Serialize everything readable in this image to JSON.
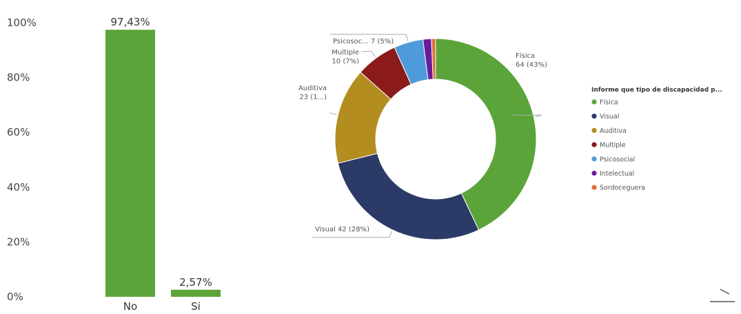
{
  "chart_data": [
    {
      "type": "bar",
      "categories": [
        "No",
        "Si"
      ],
      "values": [
        97.43,
        2.57
      ],
      "data_labels": [
        "97,43%",
        "2,57%"
      ],
      "ylim": [
        0,
        100
      ],
      "yticks": [
        "0%",
        "20%",
        "40%",
        "60%",
        "80%",
        "100%"
      ],
      "ytick_values": [
        0,
        20,
        40,
        60,
        80,
        100
      ],
      "color": "#5ba43a",
      "grid": false
    },
    {
      "type": "pie",
      "donut": true,
      "legend_title": "Informe que tipo de discapacidad p...",
      "legend_position": "right",
      "slices": [
        {
          "name": "Física",
          "value": 64,
          "label_lines": [
            "Física",
            "64 (43%)"
          ],
          "color": "#5ba43a"
        },
        {
          "name": "Visual",
          "value": 42,
          "label_lines": [
            "Visual 42 (28%)"
          ],
          "color": "#2b3a67"
        },
        {
          "name": "Auditiva",
          "value": 23,
          "label_lines": [
            "Auditiva",
            "23 (1...)"
          ],
          "color": "#b38d1f"
        },
        {
          "name": "Multiple",
          "value": 10,
          "label_lines": [
            "Multiple",
            "10 (7%)"
          ],
          "color": "#8b1a1a"
        },
        {
          "name": "Psicosocial",
          "value": 7,
          "label_lines": [
            "Psicosoc... 7 (5%)"
          ],
          "color": "#4f9bd9"
        },
        {
          "name": "Intelectual",
          "value": 2,
          "label_lines": [],
          "color": "#6a1b9a"
        },
        {
          "name": "Sordoceguera",
          "value": 1,
          "label_lines": [],
          "color": "#e0703a"
        }
      ]
    }
  ]
}
